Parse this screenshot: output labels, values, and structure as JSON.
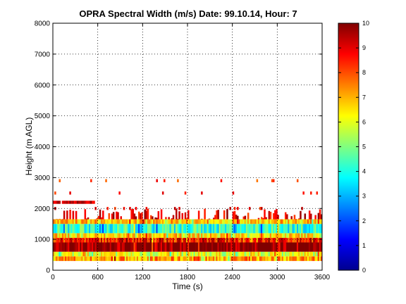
{
  "chart_data": {
    "type": "heatmap",
    "title": "OPRA Spectral Width (m/s)  Date: 99.10.14, Hour: 7",
    "xlabel": "Time (s)",
    "ylabel": "Height (m AGL)",
    "xlim": [
      0,
      3600
    ],
    "ylim": [
      0,
      8000
    ],
    "xticks": [
      0,
      600,
      1200,
      1800,
      2400,
      3000,
      3600
    ],
    "yticks": [
      0,
      1000,
      2000,
      3000,
      4000,
      5000,
      6000,
      7000,
      8000
    ],
    "grid": true,
    "colorbar": {
      "range": [
        0,
        10
      ],
      "ticks": [
        0,
        1,
        2,
        3,
        4,
        5,
        6,
        7,
        8,
        9,
        10
      ],
      "colormap": "jet",
      "placement": "right"
    },
    "bands": [
      {
        "height_range": [
          300,
          450
        ],
        "value": 7.2
      },
      {
        "height_range": [
          450,
          600
        ],
        "value": 6.0
      },
      {
        "height_range": [
          600,
          900
        ],
        "value": 10.0
      },
      {
        "height_range": [
          900,
          1050
        ],
        "value": 8.5
      },
      {
        "height_range": [
          1050,
          1200
        ],
        "value": 6.5
      },
      {
        "height_range": [
          1200,
          1500
        ],
        "value": 4.2
      },
      {
        "height_range": [
          1500,
          1650
        ],
        "value": 6.8
      }
    ],
    "sparse_layers": [
      {
        "height": 2200,
        "time_range": [
          0,
          550
        ],
        "value": 10.0
      },
      {
        "height": 2000,
        "time_range": [
          0,
          3600
        ],
        "value": 9.5
      },
      {
        "height": 2900,
        "time_range": [
          0,
          3600
        ],
        "value": 9.0
      },
      {
        "height": 2500,
        "time_range": [
          0,
          3600
        ],
        "value": 9.5
      }
    ]
  }
}
